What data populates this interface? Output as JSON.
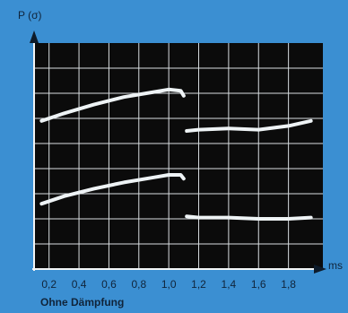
{
  "chart_data": {
    "type": "line",
    "y_label": "P (σ)",
    "x_label": "ms",
    "caption": "Ohne Dämpfung",
    "x": [
      0.15,
      0.3,
      0.5,
      0.7,
      0.9,
      1.0,
      1.08,
      1.1,
      1.11,
      1.12,
      1.2,
      1.4,
      1.6,
      1.8,
      1.95
    ],
    "series": [
      {
        "color": "#eef3f5",
        "values": [
          5.9,
          6.2,
          6.55,
          6.85,
          7.05,
          7.15,
          7.1,
          6.9,
          null,
          5.5,
          5.55,
          5.6,
          5.55,
          5.7,
          5.9
        ]
      },
      {
        "color": "#eef3f5",
        "values": [
          2.6,
          2.9,
          3.2,
          3.45,
          3.65,
          3.75,
          3.75,
          3.6,
          null,
          2.1,
          2.05,
          2.05,
          2.0,
          2.0,
          2.05
        ]
      }
    ],
    "xlim": [
      0.1,
      2.0
    ],
    "xticks": [
      {
        "value": 0.2,
        "label": "0,2"
      },
      {
        "value": 0.4,
        "label": "0,4"
      },
      {
        "value": 0.6,
        "label": "0,6"
      },
      {
        "value": 0.8,
        "label": "0,8"
      },
      {
        "value": 1.0,
        "label": "1,0"
      },
      {
        "value": 1.2,
        "label": "1,2"
      },
      {
        "value": 1.4,
        "label": "1,4"
      },
      {
        "value": 1.6,
        "label": "1,6"
      },
      {
        "value": 1.8,
        "label": "1,8"
      }
    ],
    "ylim": [
      0,
      9
    ],
    "yticks": [
      1,
      2,
      3,
      4,
      5,
      6,
      7,
      8
    ],
    "grid": true
  }
}
